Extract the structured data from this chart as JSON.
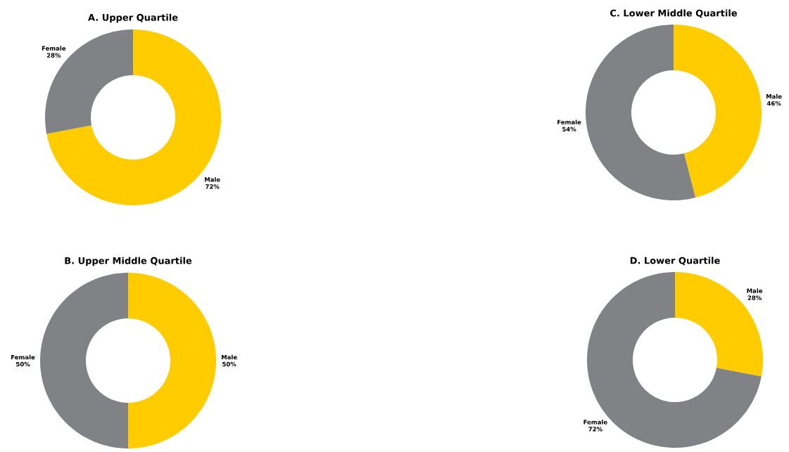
{
  "chart_data": [
    {
      "type": "donut",
      "title": "A. Upper Quartile",
      "categories": [
        "Male",
        "Female"
      ],
      "values": [
        72,
        28
      ],
      "value_labels": [
        "72%",
        "28%"
      ],
      "colors": [
        "#ffcc00",
        "#818286"
      ]
    },
    {
      "type": "donut",
      "title": "C. Lower Middle Quartile",
      "categories": [
        "Male",
        "Female"
      ],
      "values": [
        46,
        54
      ],
      "value_labels": [
        "46%",
        "54%"
      ],
      "colors": [
        "#ffcc00",
        "#818286"
      ]
    },
    {
      "type": "donut",
      "title": "B. Upper Middle Quartile",
      "categories": [
        "Male",
        "Female"
      ],
      "values": [
        50,
        50
      ],
      "value_labels": [
        "50%",
        "50%"
      ],
      "colors": [
        "#ffcc00",
        "#818286"
      ]
    },
    {
      "type": "donut",
      "title": "D. Lower Quartile",
      "categories": [
        "Male",
        "Female"
      ],
      "values": [
        28,
        72
      ],
      "value_labels": [
        "28%",
        "72%"
      ],
      "colors": [
        "#ffcc00",
        "#818286"
      ]
    }
  ]
}
